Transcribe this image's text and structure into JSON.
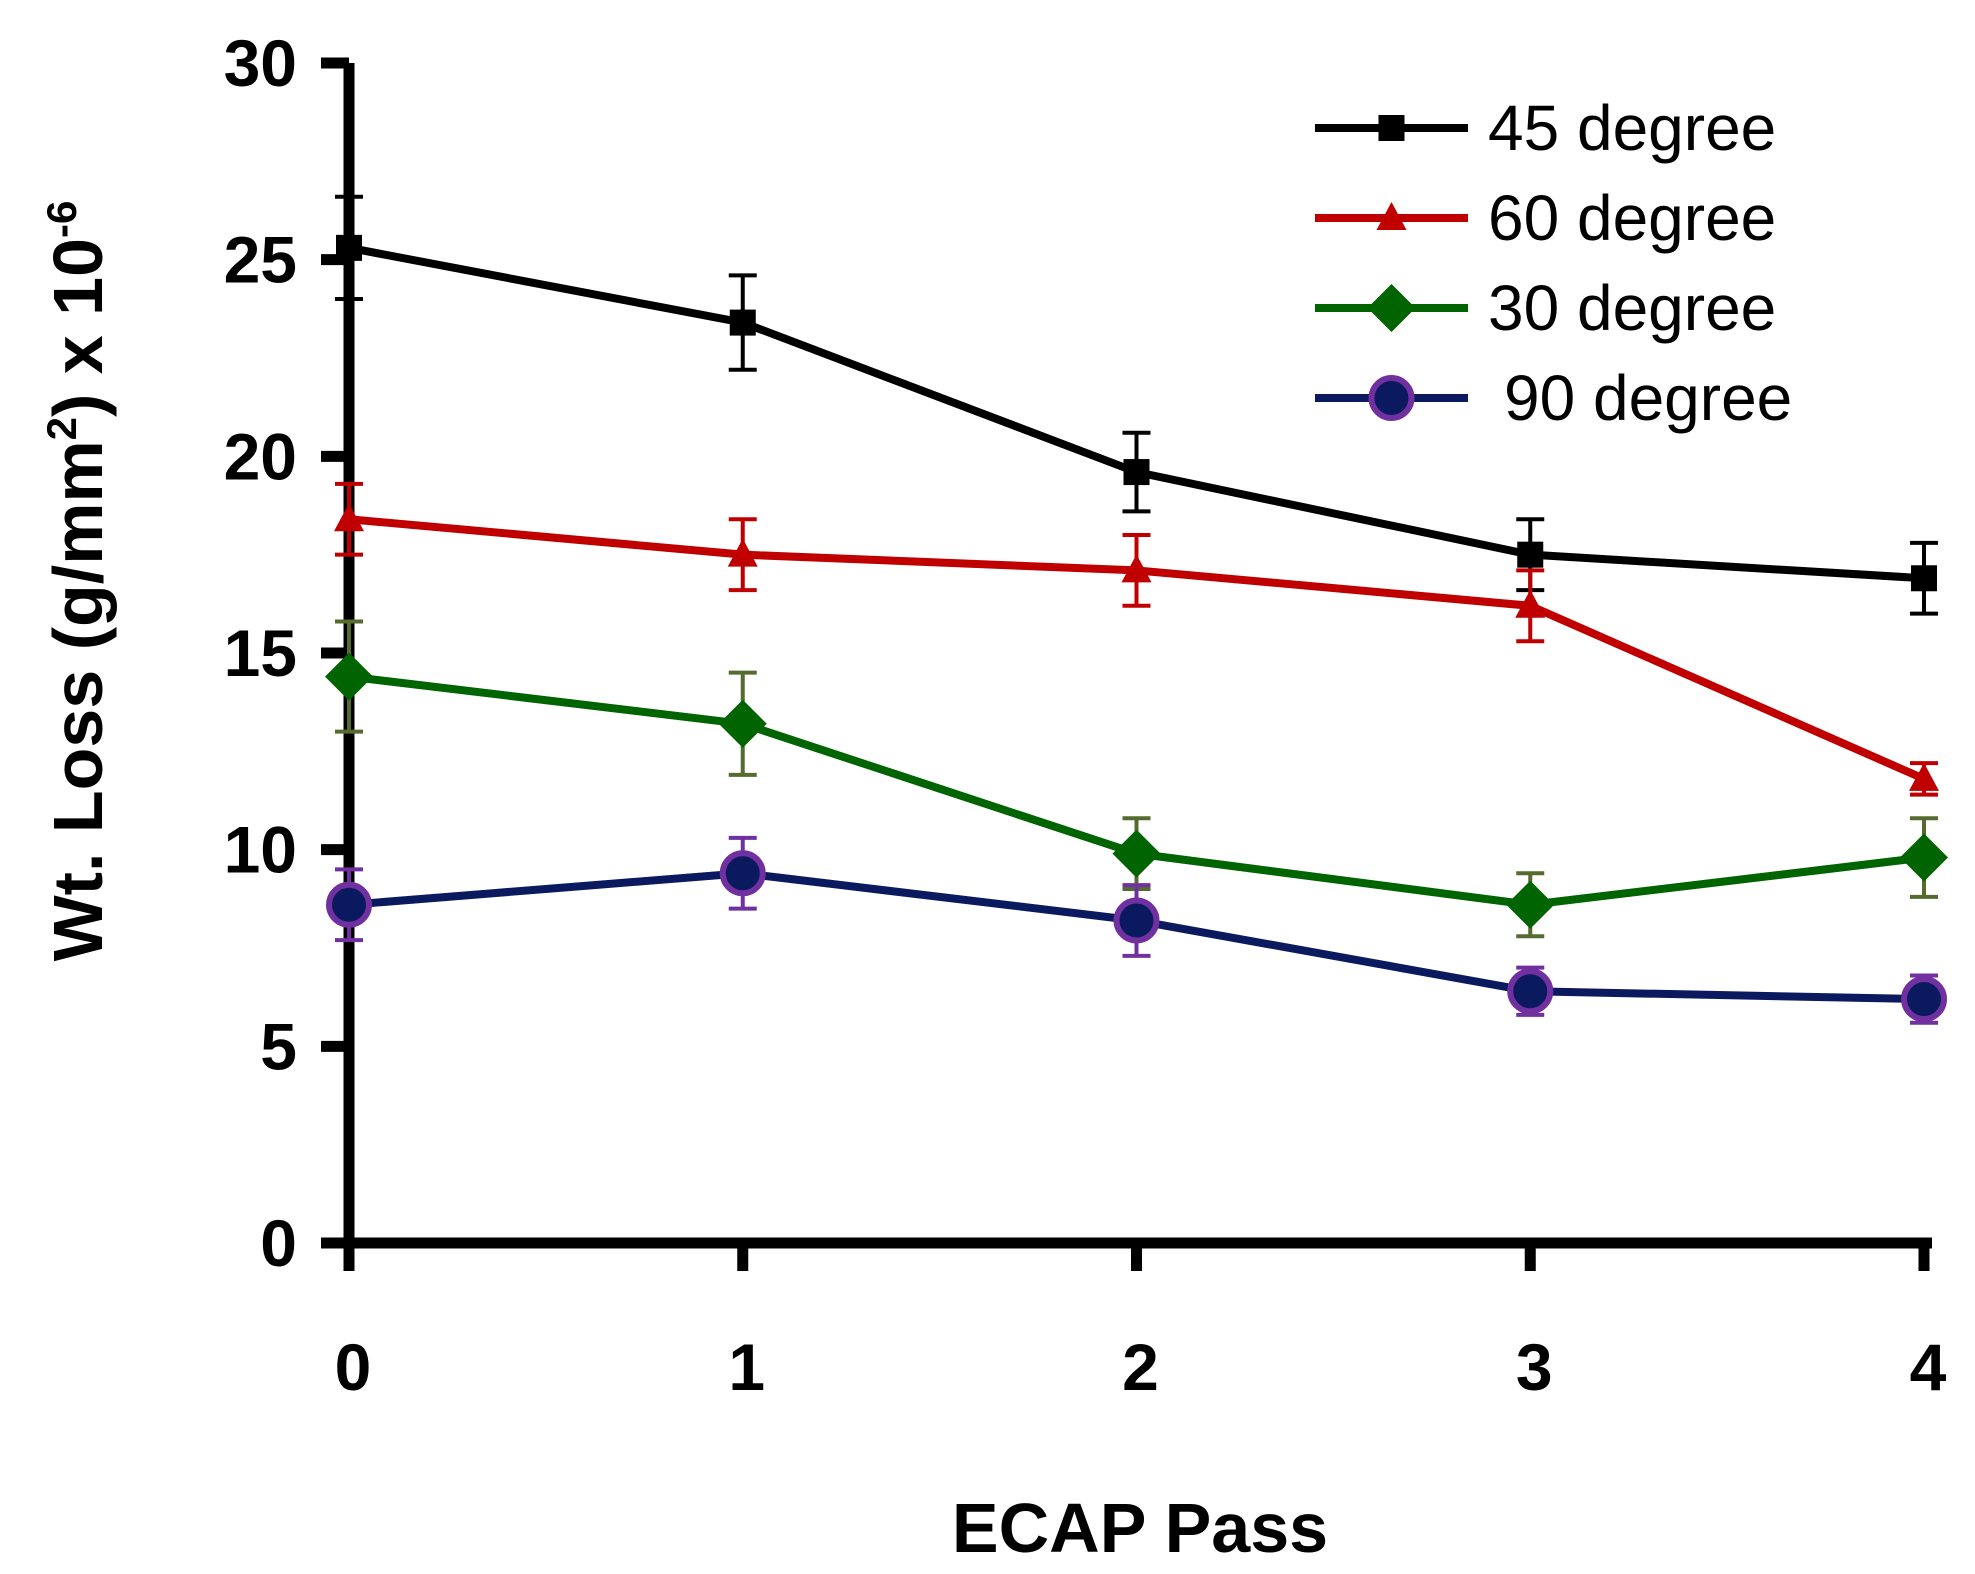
{
  "chart_data": {
    "type": "line",
    "title": "",
    "xlabel": "ECAP Pass",
    "ylabel": {
      "main": "Wt. Loss (g/mm",
      "sup1": "2",
      "mid": ") x 10",
      "sup2": "-6"
    },
    "x": [
      0,
      1,
      2,
      3,
      4
    ],
    "x_tick_labels": [
      "0",
      "1",
      "2",
      "3",
      "4"
    ],
    "xlim": [
      0,
      4
    ],
    "ylim": [
      0,
      30
    ],
    "y_ticks": [
      0,
      5,
      10,
      15,
      20,
      25,
      30
    ],
    "y_tick_labels": [
      "0",
      "5",
      "10",
      "15",
      "20",
      "25",
      "30"
    ],
    "grid": false,
    "legend_position": "top-right",
    "series": [
      {
        "name": "45 degree",
        "color": "#000000",
        "marker": "square",
        "values": [
          25.3,
          23.4,
          19.6,
          17.5,
          16.9
        ],
        "errors": [
          1.3,
          1.2,
          1.0,
          0.9,
          0.9
        ]
      },
      {
        "name": "60 degree",
        "color": "#c00000",
        "marker": "triangle",
        "values": [
          18.4,
          17.5,
          17.1,
          16.2,
          11.8
        ],
        "errors": [
          0.9,
          0.9,
          0.9,
          0.9,
          0.4
        ]
      },
      {
        "name": "30 degree",
        "color": "#006400",
        "marker": "diamond",
        "error_color": "#556b2f",
        "values": [
          14.4,
          13.2,
          9.9,
          8.6,
          9.8
        ],
        "errors": [
          1.4,
          1.3,
          0.9,
          0.8,
          1.0
        ]
      },
      {
        "name": "90 degree",
        "color": "#0b1a5e",
        "marker": "circle",
        "marker_edge": "#7030a0",
        "error_color": "#7030a0",
        "values": [
          8.6,
          9.4,
          8.2,
          6.4,
          6.2
        ],
        "errors": [
          0.9,
          0.9,
          0.9,
          0.6,
          0.6
        ]
      }
    ]
  }
}
